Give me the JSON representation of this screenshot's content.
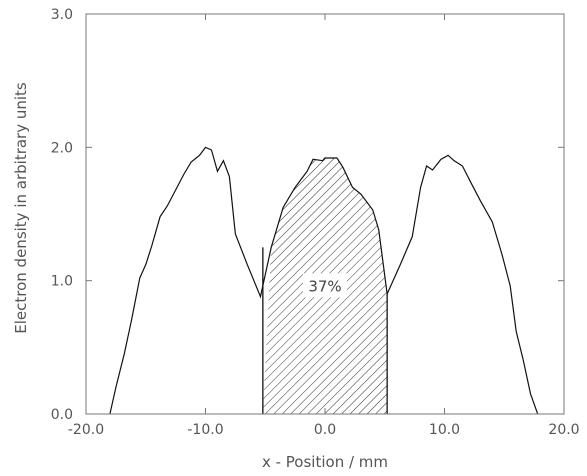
{
  "chart_data": {
    "type": "line",
    "xlabel": "x - Position / mm",
    "ylabel": "Electron density in arbitrary units",
    "xlim": [
      -20,
      20
    ],
    "ylim": [
      0,
      3
    ],
    "x_ticks": [
      "-20.0",
      "-10.0",
      "0.0",
      "10.0",
      "20.0"
    ],
    "y_ticks": [
      "0.0",
      "1.0",
      "2.0",
      "3.0"
    ],
    "grid": false,
    "series": [
      {
        "points": [
          [
            -18.0,
            0.0
          ],
          [
            -17.5,
            0.2
          ],
          [
            -16.8,
            0.45
          ],
          [
            -16.2,
            0.7
          ],
          [
            -15.5,
            1.02
          ],
          [
            -15.0,
            1.12
          ],
          [
            -14.5,
            1.26
          ],
          [
            -13.8,
            1.48
          ],
          [
            -13.2,
            1.56
          ],
          [
            -12.5,
            1.68
          ],
          [
            -11.8,
            1.8
          ],
          [
            -11.2,
            1.89
          ],
          [
            -10.5,
            1.94
          ],
          [
            -10.0,
            2.0
          ],
          [
            -9.5,
            1.98
          ],
          [
            -9.0,
            1.82
          ],
          [
            -8.5,
            1.9
          ],
          [
            -8.0,
            1.78
          ],
          [
            -7.5,
            1.35
          ],
          [
            -6.5,
            1.12
          ],
          [
            -5.4,
            0.88
          ],
          [
            -4.5,
            1.25
          ],
          [
            -3.5,
            1.55
          ],
          [
            -2.5,
            1.7
          ],
          [
            -1.5,
            1.82
          ],
          [
            -1.0,
            1.91
          ],
          [
            -0.2,
            1.9
          ],
          [
            0.0,
            1.92
          ],
          [
            1.0,
            1.92
          ],
          [
            1.5,
            1.85
          ],
          [
            2.3,
            1.7
          ],
          [
            3.0,
            1.65
          ],
          [
            4.0,
            1.53
          ],
          [
            4.5,
            1.38
          ],
          [
            5.2,
            0.9
          ],
          [
            6.3,
            1.12
          ],
          [
            7.3,
            1.33
          ],
          [
            8.0,
            1.7
          ],
          [
            8.5,
            1.86
          ],
          [
            9.0,
            1.83
          ],
          [
            9.7,
            1.91
          ],
          [
            10.3,
            1.94
          ],
          [
            10.8,
            1.9
          ],
          [
            11.5,
            1.86
          ],
          [
            12.3,
            1.72
          ],
          [
            13.0,
            1.6
          ],
          [
            14.0,
            1.44
          ],
          [
            14.8,
            1.2
          ],
          [
            15.5,
            0.96
          ],
          [
            16.0,
            0.62
          ],
          [
            16.6,
            0.4
          ],
          [
            17.2,
            0.15
          ],
          [
            17.8,
            0.0
          ]
        ]
      }
    ],
    "shaded_region": {
      "x_from": -5.2,
      "x_to": 5.2,
      "fill": "diagonal hatch"
    },
    "annotation": {
      "text": "37%",
      "x": 0.0,
      "y": 0.95
    }
  }
}
